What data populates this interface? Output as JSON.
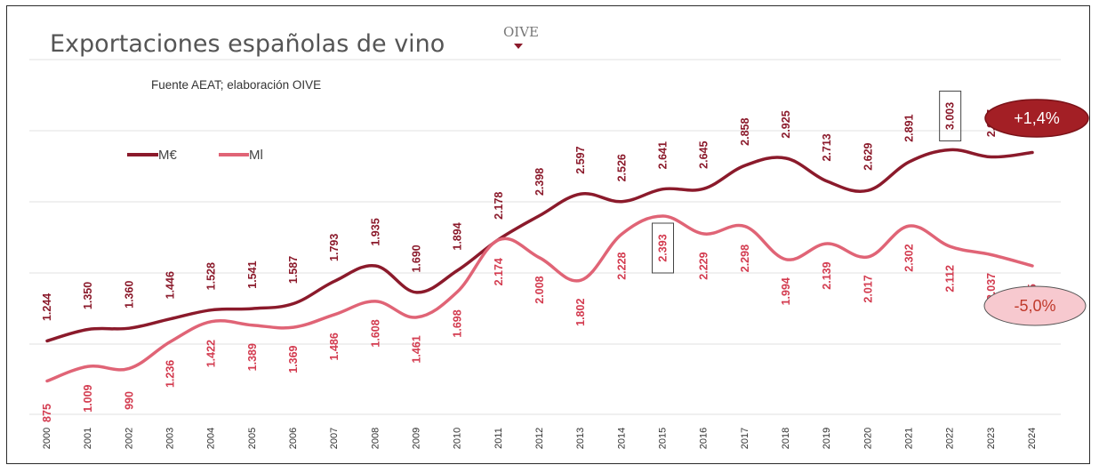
{
  "chart_data": {
    "type": "line",
    "title": "Exportaciones españolas de vino",
    "subtitle": "Fuente AEAT; elaboración OIVE",
    "logo_text": "OIVE",
    "categories": [
      "2000",
      "2001",
      "2002",
      "2003",
      "2004",
      "2005",
      "2006",
      "2007",
      "2008",
      "2009",
      "2010",
      "2011",
      "2012",
      "2013",
      "2014",
      "2015",
      "2016",
      "2017",
      "2018",
      "2019",
      "2020",
      "2021",
      "2022",
      "2023",
      "2024"
    ],
    "series": [
      {
        "name": "M€",
        "color": "#8b1a2b",
        "values": [
          1244,
          1350,
          1360,
          1446,
          1528,
          1541,
          1587,
          1793,
          1935,
          1690,
          1894,
          2178,
          2398,
          2597,
          2526,
          2641,
          2645,
          2858,
          2925,
          2713,
          2629,
          2891,
          3003,
          2937,
          2978
        ],
        "labels": [
          "1.244",
          "1.350",
          "1.360",
          "1.446",
          "1.528",
          "1.541",
          "1.587",
          "1.793",
          "1.935",
          "1.690",
          "1.894",
          "2.178",
          "2.398",
          "2.597",
          "2.526",
          "2.641",
          "2.645",
          "2.858",
          "2.925",
          "2.713",
          "2.629",
          "2.891",
          "3.003",
          "2.937",
          "2.978"
        ],
        "highlight_index": 22,
        "change": "+1,4%"
      },
      {
        "name": "Ml",
        "color": "#e06476",
        "values": [
          875,
          1009,
          990,
          1236,
          1422,
          1389,
          1369,
          1486,
          1608,
          1461,
          1698,
          2174,
          2008,
          1802,
          2228,
          2393,
          2229,
          2298,
          1994,
          2139,
          2017,
          2302,
          2112,
          2037,
          1935
        ],
        "labels": [
          "875",
          "1.009",
          "990",
          "1.236",
          "1.422",
          "1.389",
          "1.369",
          "1.486",
          "1.608",
          "1.461",
          "1.698",
          "2.174",
          "2.008",
          "1.802",
          "2.228",
          "2.393",
          "2.229",
          "2.298",
          "1.994",
          "2.139",
          "2.017",
          "2.302",
          "2.112",
          "2.037",
          "1.935"
        ],
        "highlight_index": 15,
        "change": "-5,0%"
      }
    ],
    "grid": true,
    "legend": "top-left"
  }
}
